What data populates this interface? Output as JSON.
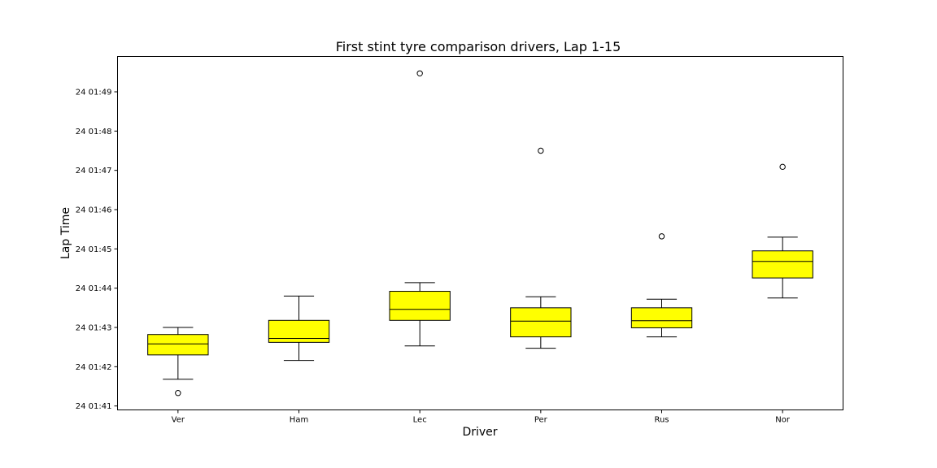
{
  "chart_data": {
    "type": "box",
    "title": "First stint tyre comparison drivers, Lap 1-15",
    "xlabel": "Driver",
    "ylabel": "Lap Time",
    "y_unit": "seconds (M:SS mapped to tick labels)",
    "ylim": [
      100.9,
      109.9
    ],
    "yticks": [
      {
        "value": 101,
        "label": "24 01:41"
      },
      {
        "value": 102,
        "label": "24 01:42"
      },
      {
        "value": 103,
        "label": "24 01:43"
      },
      {
        "value": 104,
        "label": "24 01:44"
      },
      {
        "value": 105,
        "label": "24 01:45"
      },
      {
        "value": 106,
        "label": "24 01:46"
      },
      {
        "value": 107,
        "label": "24 01:47"
      },
      {
        "value": 108,
        "label": "24 01:48"
      },
      {
        "value": 109,
        "label": "24 01:49"
      }
    ],
    "box_color": "#ffff00",
    "edge_color": "#000000",
    "categories": [
      "Ver",
      "Ham",
      "Lec",
      "Per",
      "Rus",
      "Nor"
    ],
    "boxes": [
      {
        "driver": "Ver",
        "whislo": 101.68,
        "q1": 102.3,
        "med": 102.58,
        "q3": 102.82,
        "whishi": 103.0,
        "fliers": [
          101.33
        ]
      },
      {
        "driver": "Ham",
        "whislo": 102.16,
        "q1": 102.62,
        "med": 102.72,
        "q3": 103.18,
        "whishi": 103.8,
        "fliers": []
      },
      {
        "driver": "Lec",
        "whislo": 102.53,
        "q1": 103.18,
        "med": 103.46,
        "q3": 103.92,
        "whishi": 104.14,
        "fliers": [
          109.47
        ]
      },
      {
        "driver": "Per",
        "whislo": 102.47,
        "q1": 102.76,
        "med": 103.16,
        "q3": 103.5,
        "whishi": 103.78,
        "fliers": [
          107.5
        ]
      },
      {
        "driver": "Rus",
        "whislo": 102.76,
        "q1": 102.99,
        "med": 103.17,
        "q3": 103.5,
        "whishi": 103.72,
        "fliers": [
          105.32
        ]
      },
      {
        "driver": "Nor",
        "whislo": 103.75,
        "q1": 104.26,
        "med": 104.68,
        "q3": 104.95,
        "whishi": 105.3,
        "fliers": [
          107.09
        ]
      }
    ]
  }
}
